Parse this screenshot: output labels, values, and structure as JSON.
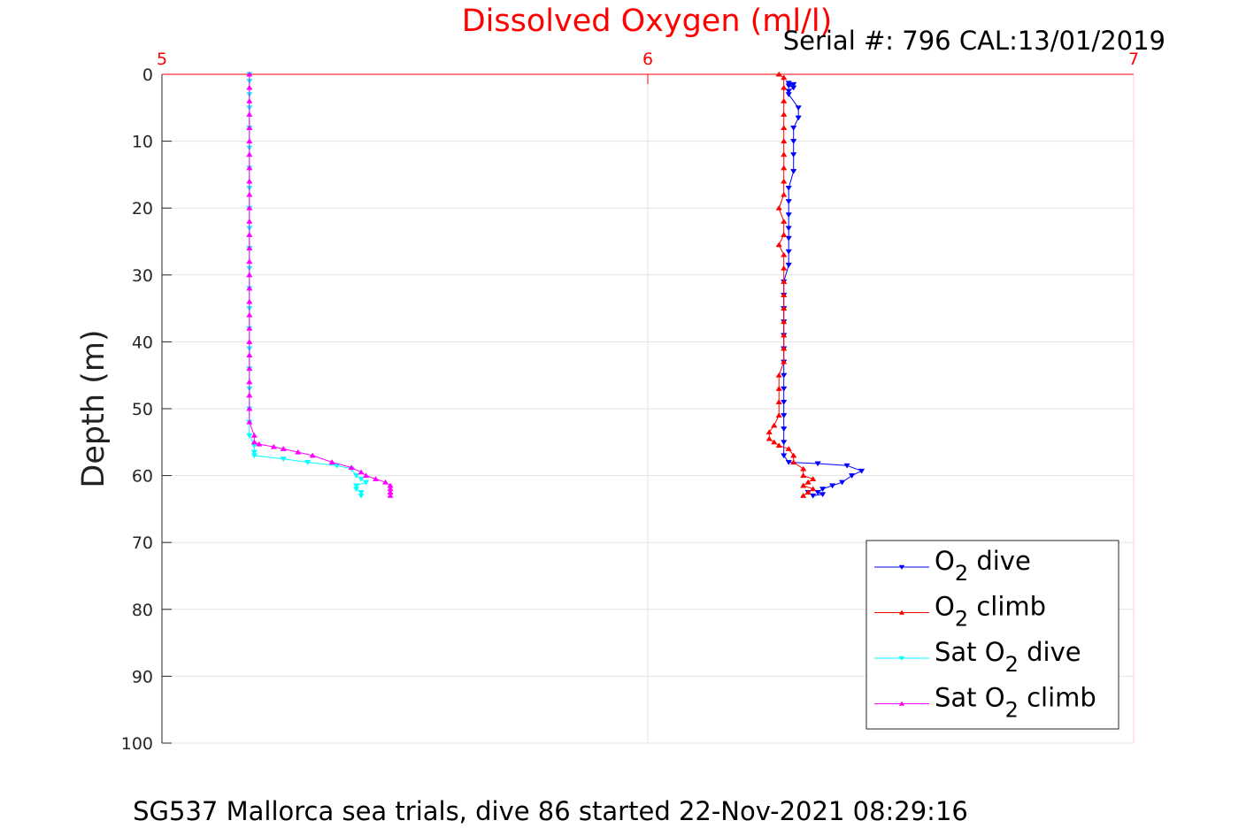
{
  "chart_data": {
    "type": "line",
    "title": "Dissolved Oxygen (ml/l)",
    "subtitle": "Serial #: 796  CAL:13/01/2019",
    "footer": "SG537 Mallorca sea trials, dive 86 started 22-Nov-2021 08:29:16",
    "xlabel": "",
    "ylabel": "Depth (m)",
    "xlim": [
      5,
      7
    ],
    "ylim": [
      0,
      100
    ],
    "y_reversed": true,
    "x_axis_location": "top",
    "x_ticks": [
      5,
      6,
      7
    ],
    "y_ticks": [
      0,
      10,
      20,
      30,
      40,
      50,
      60,
      70,
      80,
      90,
      100
    ],
    "grid": true,
    "legend_position": "bottom-right",
    "title_color": "#ff0000",
    "x_axis_color": "#ff0000",
    "series": [
      {
        "label_main": "O",
        "label_sub": "2",
        "label_suffix": " dive",
        "color": "#0000ff",
        "marker": "triangle-down",
        "points": [
          [
            6.29,
            1.3
          ],
          [
            6.3,
            1.5
          ],
          [
            6.29,
            1.7
          ],
          [
            6.3,
            2.0
          ],
          [
            6.29,
            2.5
          ],
          [
            6.29,
            3.0
          ],
          [
            6.31,
            5.0
          ],
          [
            6.31,
            6.5
          ],
          [
            6.3,
            8.0
          ],
          [
            6.3,
            10.0
          ],
          [
            6.3,
            12.0
          ],
          [
            6.3,
            14.5
          ],
          [
            6.29,
            17.0
          ],
          [
            6.29,
            19.0
          ],
          [
            6.29,
            21.0
          ],
          [
            6.29,
            23.0
          ],
          [
            6.29,
            24.5
          ],
          [
            6.29,
            26.5
          ],
          [
            6.29,
            28.5
          ],
          [
            6.28,
            31.0
          ],
          [
            6.28,
            33.0
          ],
          [
            6.28,
            35.0
          ],
          [
            6.28,
            37.0
          ],
          [
            6.28,
            39.0
          ],
          [
            6.28,
            41.0
          ],
          [
            6.28,
            43.0
          ],
          [
            6.28,
            45.0
          ],
          [
            6.28,
            47.0
          ],
          [
            6.28,
            49.0
          ],
          [
            6.28,
            51.0
          ],
          [
            6.28,
            53.0
          ],
          [
            6.28,
            55.0
          ],
          [
            6.28,
            57.0
          ],
          [
            6.29,
            58.0
          ],
          [
            6.35,
            58.2
          ],
          [
            6.41,
            58.5
          ],
          [
            6.44,
            59.3
          ],
          [
            6.42,
            60.0
          ],
          [
            6.4,
            61.0
          ],
          [
            6.38,
            61.5
          ],
          [
            6.36,
            62.0
          ],
          [
            6.35,
            62.5
          ],
          [
            6.36,
            62.8
          ],
          [
            6.34,
            63.0
          ],
          [
            6.33,
            62.5
          ]
        ]
      },
      {
        "label_main": "O",
        "label_sub": "2",
        "label_suffix": " climb",
        "color": "#ff0000",
        "marker": "triangle-up",
        "points": [
          [
            6.27,
            0.0
          ],
          [
            6.28,
            0.5
          ],
          [
            6.28,
            2.0
          ],
          [
            6.28,
            4.0
          ],
          [
            6.28,
            6.0
          ],
          [
            6.28,
            8.0
          ],
          [
            6.28,
            10.0
          ],
          [
            6.28,
            12.0
          ],
          [
            6.28,
            14.0
          ],
          [
            6.28,
            16.0
          ],
          [
            6.28,
            18.0
          ],
          [
            6.27,
            20.0
          ],
          [
            6.28,
            22.0
          ],
          [
            6.28,
            24.0
          ],
          [
            6.27,
            25.5
          ],
          [
            6.28,
            27.0
          ],
          [
            6.28,
            29.0
          ],
          [
            6.28,
            31.0
          ],
          [
            6.28,
            33.0
          ],
          [
            6.28,
            35.0
          ],
          [
            6.28,
            37.0
          ],
          [
            6.28,
            39.0
          ],
          [
            6.28,
            41.0
          ],
          [
            6.28,
            43.0
          ],
          [
            6.27,
            45.0
          ],
          [
            6.27,
            47.0
          ],
          [
            6.27,
            49.0
          ],
          [
            6.27,
            51.0
          ],
          [
            6.26,
            52.5
          ],
          [
            6.25,
            53.5
          ],
          [
            6.25,
            54.5
          ],
          [
            6.26,
            55.0
          ],
          [
            6.27,
            55.5
          ],
          [
            6.29,
            56.0
          ],
          [
            6.3,
            57.0
          ],
          [
            6.3,
            58.0
          ],
          [
            6.32,
            59.0
          ],
          [
            6.32,
            60.0
          ],
          [
            6.34,
            60.5
          ],
          [
            6.33,
            61.0
          ],
          [
            6.32,
            61.5
          ],
          [
            6.34,
            62.0
          ],
          [
            6.33,
            62.5
          ],
          [
            6.32,
            63.0
          ]
        ]
      },
      {
        "label_main": "Sat O",
        "label_sub": "2",
        "label_suffix": " dive",
        "color": "#00ffff",
        "marker": "triangle-down",
        "points": [
          [
            5.18,
            0.0
          ],
          [
            5.18,
            1.0
          ],
          [
            5.18,
            3.0
          ],
          [
            5.18,
            5.0
          ],
          [
            5.18,
            8.0
          ],
          [
            5.18,
            11.0
          ],
          [
            5.18,
            14.0
          ],
          [
            5.18,
            17.0
          ],
          [
            5.18,
            20.0
          ],
          [
            5.18,
            23.0
          ],
          [
            5.18,
            26.0
          ],
          [
            5.18,
            29.0
          ],
          [
            5.18,
            32.0
          ],
          [
            5.18,
            35.0
          ],
          [
            5.18,
            38.0
          ],
          [
            5.18,
            41.0
          ],
          [
            5.18,
            44.0
          ],
          [
            5.18,
            47.0
          ],
          [
            5.18,
            50.0
          ],
          [
            5.18,
            52.0
          ],
          [
            5.18,
            54.0
          ],
          [
            5.19,
            55.5
          ],
          [
            5.19,
            56.5
          ],
          [
            5.19,
            57.0
          ],
          [
            5.25,
            57.5
          ],
          [
            5.3,
            58.0
          ],
          [
            5.36,
            58.5
          ],
          [
            5.39,
            59.0
          ],
          [
            5.4,
            60.0
          ],
          [
            5.41,
            60.5
          ],
          [
            5.42,
            61.0
          ],
          [
            5.4,
            61.5
          ],
          [
            5.4,
            62.0
          ],
          [
            5.41,
            62.5
          ],
          [
            5.41,
            63.0
          ]
        ]
      },
      {
        "label_main": "Sat O",
        "label_sub": "2",
        "label_suffix": " climb",
        "color": "#ff00ff",
        "marker": "triangle-up",
        "points": [
          [
            5.18,
            0.0
          ],
          [
            5.18,
            2.0
          ],
          [
            5.18,
            4.0
          ],
          [
            5.18,
            6.0
          ],
          [
            5.18,
            8.0
          ],
          [
            5.18,
            10.0
          ],
          [
            5.18,
            12.0
          ],
          [
            5.18,
            14.0
          ],
          [
            5.18,
            16.0
          ],
          [
            5.18,
            18.0
          ],
          [
            5.18,
            20.0
          ],
          [
            5.18,
            22.0
          ],
          [
            5.18,
            24.0
          ],
          [
            5.18,
            26.0
          ],
          [
            5.18,
            28.0
          ],
          [
            5.18,
            30.0
          ],
          [
            5.18,
            32.0
          ],
          [
            5.18,
            34.0
          ],
          [
            5.18,
            36.0
          ],
          [
            5.18,
            38.0
          ],
          [
            5.18,
            40.0
          ],
          [
            5.18,
            42.0
          ],
          [
            5.18,
            44.0
          ],
          [
            5.18,
            46.0
          ],
          [
            5.18,
            48.0
          ],
          [
            5.18,
            50.0
          ],
          [
            5.18,
            52.0
          ],
          [
            5.19,
            54.0
          ],
          [
            5.19,
            55.0
          ],
          [
            5.2,
            55.3
          ],
          [
            5.23,
            55.7
          ],
          [
            5.25,
            56.0
          ],
          [
            5.28,
            56.5
          ],
          [
            5.31,
            57.0
          ],
          [
            5.35,
            58.0
          ],
          [
            5.39,
            58.8
          ],
          [
            5.41,
            59.5
          ],
          [
            5.42,
            60.0
          ],
          [
            5.44,
            60.5
          ],
          [
            5.46,
            61.0
          ],
          [
            5.47,
            61.5
          ],
          [
            5.47,
            62.0
          ],
          [
            5.47,
            62.5
          ],
          [
            5.47,
            63.0
          ]
        ]
      }
    ]
  }
}
